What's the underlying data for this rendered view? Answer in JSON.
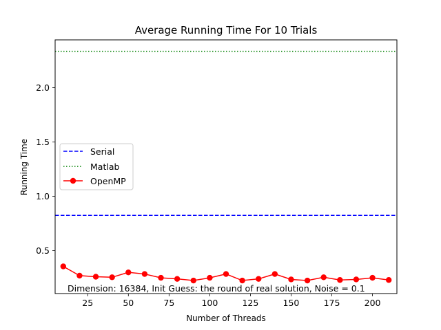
{
  "chart_data": {
    "type": "line",
    "title": "Average Running Time For 10 Trials",
    "xlabel": "Number of Threads",
    "ylabel": "Running Time",
    "xlim": [
      5,
      215
    ],
    "ylim": [
      0.105,
      2.44
    ],
    "x_ticks": [
      25,
      50,
      75,
      100,
      125,
      150,
      175,
      200
    ],
    "y_ticks": [
      0.5,
      1.0,
      1.5,
      2.0
    ],
    "grid": false,
    "legend_position": "center-left",
    "annotation": "Dimension: 16384, Init Guess: the round of real solution, Noise = 0.1",
    "series": [
      {
        "name": "Serial",
        "style": "dashed",
        "color": "#0000ff",
        "constant": 0.825
      },
      {
        "name": "Matlab",
        "style": "dotted",
        "color": "#008000",
        "constant": 2.335
      },
      {
        "name": "OpenMP",
        "style": "solid-marker",
        "color": "#ff0000",
        "x": [
          10,
          20,
          30,
          40,
          50,
          60,
          70,
          80,
          90,
          100,
          110,
          120,
          130,
          140,
          150,
          160,
          170,
          180,
          190,
          200,
          210
        ],
        "y": [
          0.355,
          0.27,
          0.26,
          0.255,
          0.3,
          0.285,
          0.25,
          0.24,
          0.225,
          0.25,
          0.285,
          0.225,
          0.24,
          0.285,
          0.235,
          0.225,
          0.255,
          0.23,
          0.235,
          0.25,
          0.23
        ]
      }
    ]
  }
}
